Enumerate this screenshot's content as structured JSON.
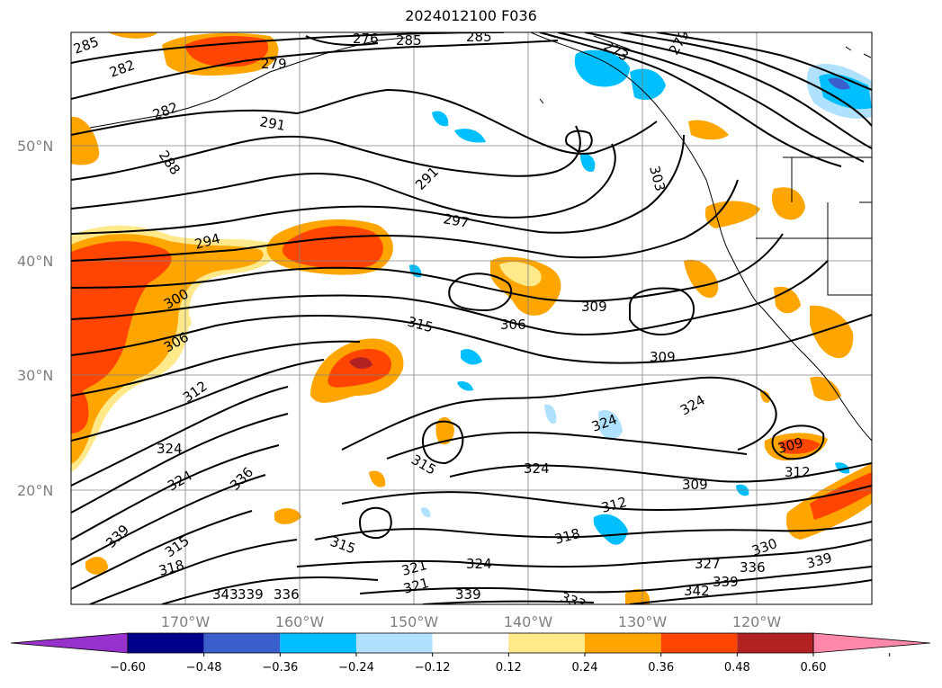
{
  "title": "2024012100 F036",
  "lat_labels": [
    "50°N",
    "40°N",
    "30°N",
    "20°N"
  ],
  "lon_labels": [
    "170°W",
    "160°W",
    "150°W",
    "140°W",
    "130°W",
    "120°W"
  ],
  "colorbar": {
    "ticks": [
      "−0.60",
      "−0.48",
      "−0.36",
      "−0.24",
      "−0.12",
      "0.12",
      "0.24",
      "0.36",
      "0.48",
      "0.60"
    ],
    "colors": [
      "#9932cc",
      "#00008b",
      "#3a5fcd",
      "#00bfff",
      "#b0e2ff",
      "#ffffff",
      "#ffe98a",
      "#ffa500",
      "#ff4500",
      "#b22222",
      "#ff88aa"
    ]
  },
  "shading_colors": {
    "light_yellow": "#ffe98a",
    "orange": "#ffa500",
    "red_orange": "#ff4500",
    "dark_red": "#b22222",
    "light_blue": "#b0e2ff",
    "blue": "#00bfff",
    "mid_blue": "#3a5fcd"
  },
  "contour_labels": [
    "285",
    "282",
    "279",
    "276",
    "285",
    "285",
    "273",
    "279",
    "282",
    "288",
    "291",
    "291",
    "297",
    "303",
    "294",
    "300",
    "306",
    "315",
    "306",
    "309",
    "309",
    "312",
    "324",
    "324",
    "324",
    "324",
    "315",
    "324",
    "309",
    "309",
    "312",
    "336",
    "321",
    "339",
    "315",
    "318",
    "312",
    "318",
    "315",
    "321",
    "324",
    "327",
    "330",
    "336",
    "339",
    "342",
    "339",
    "336",
    "343",
    "339",
    "339",
    "333"
  ]
}
